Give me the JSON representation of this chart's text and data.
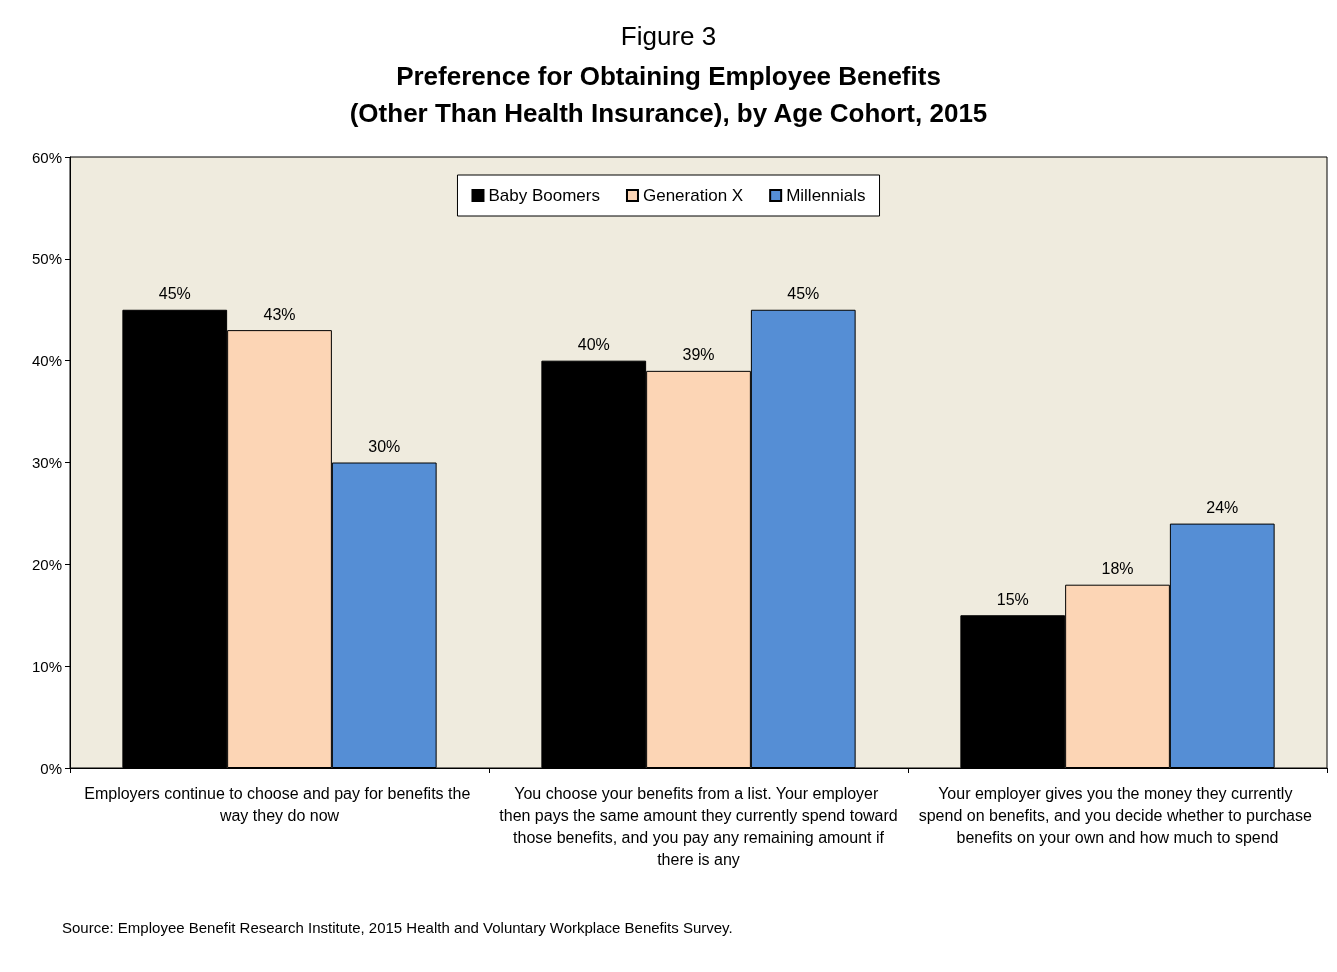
{
  "chart_data": {
    "type": "bar",
    "title": "Figure 3",
    "subtitle": "Preference for Obtaining Employee Benefits\n(Other Than Health Insurance), by Age Cohort, 2015",
    "categories": [
      "Employers continue to choose and pay for benefits the way they do now",
      "You choose your benefits from a list. Your employer then pays the same amount they currently spend toward those benefits, and you pay any remaining amount if there is any",
      "Your employer gives you the money they currently spend on benefits, and you decide whether to purchase benefits on your own and how much to spend"
    ],
    "series": [
      {
        "name": "Baby Boomers",
        "color": "#000000",
        "values": [
          45,
          40,
          15
        ],
        "value_labels": [
          "45%",
          "40%",
          "15%"
        ]
      },
      {
        "name": "Generation X",
        "color": "#fcd5b5",
        "values": [
          43,
          39,
          18
        ],
        "value_labels": [
          "43%",
          "39%",
          "18%"
        ]
      },
      {
        "name": "Millennials",
        "color": "#558ed5",
        "values": [
          30,
          45,
          24
        ],
        "value_labels": [
          "30%",
          "45%",
          "24%"
        ]
      }
    ],
    "ylim": [
      0,
      60
    ],
    "yticks": [
      {
        "value": 0,
        "label": "0%"
      },
      {
        "value": 10,
        "label": "10%"
      },
      {
        "value": 20,
        "label": "20%"
      },
      {
        "value": 30,
        "label": "30%"
      },
      {
        "value": 40,
        "label": "40%"
      },
      {
        "value": 50,
        "label": "50%"
      },
      {
        "value": 60,
        "label": "60%"
      }
    ],
    "grid": false,
    "legend": "top",
    "annotations": [
      "Source: Employee Benefit Research Institute, 2015 Health and Voluntary Workplace Benefits Survey."
    ]
  }
}
